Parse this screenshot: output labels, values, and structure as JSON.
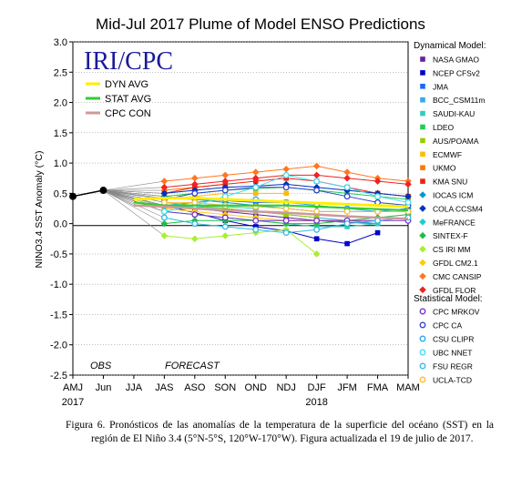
{
  "chart_data": {
    "type": "line",
    "title": "Mid-Jul 2017 Plume of Model ENSO Predictions",
    "ylabel": "NINO3.4 SST Anomaly (°C)",
    "ylim": [
      -2.5,
      3.0
    ],
    "yticks": [
      "3.0",
      "2.5",
      "2.0",
      "1.5",
      "1.0",
      "0.5",
      "0.0",
      "-0.5",
      "-1.0",
      "-1.5",
      "-2.0",
      "-2.5"
    ],
    "x": [
      "AMJ",
      "Jun",
      "JJA",
      "JAS",
      "ASO",
      "SON",
      "OND",
      "NDJ",
      "DJF",
      "JFM",
      "FMA",
      "MAM"
    ],
    "year_labels": [
      {
        "x": "AMJ",
        "text": "2017"
      },
      {
        "x": "DJF",
        "text": "2018"
      }
    ],
    "zero_line": 0,
    "annotations": {
      "obs": "OBS",
      "forecast": "FORECAST"
    },
    "logo": "IRI/CPC",
    "inset_legend": [
      {
        "name": "DYN AVG",
        "color": "#ffee00"
      },
      {
        "name": "STAT AVG",
        "color": "#33cc33"
      },
      {
        "name": "CPC CON",
        "color": "#cc9999"
      }
    ],
    "dynamical_header": "Dynamical Model:",
    "statistical_header": "Statistical Model:",
    "observed": {
      "name": "OBS",
      "values": [
        0.45,
        0.55
      ]
    },
    "series": [
      {
        "name": "NASA GMAO",
        "group": "dyn",
        "color": "#6a1fa0",
        "marker": "square",
        "values": [
          null,
          null,
          null,
          0.28,
          0.25,
          0.2,
          0.15,
          0.1,
          0.05,
          0.02,
          0.0,
          null
        ]
      },
      {
        "name": "NCEP CFSv2",
        "group": "dyn",
        "color": "#0000cc",
        "marker": "square",
        "values": [
          null,
          null,
          null,
          0.3,
          0.18,
          0.05,
          -0.05,
          -0.12,
          -0.25,
          -0.33,
          -0.15,
          null
        ]
      },
      {
        "name": "JMA",
        "group": "dyn",
        "color": "#1a66ff",
        "marker": "square",
        "values": [
          null,
          null,
          null,
          0.42,
          0.4,
          0.38,
          0.35,
          0.35,
          null,
          null,
          null,
          null
        ]
      },
      {
        "name": "BCC_CSM11m",
        "group": "dyn",
        "color": "#33aaee",
        "marker": "square",
        "values": [
          null,
          null,
          null,
          0.3,
          0.28,
          0.25,
          0.2,
          0.15,
          0.1,
          0.05,
          0.0,
          null
        ]
      },
      {
        "name": "SAUDI-KAU",
        "group": "dyn",
        "color": "#33ccbb",
        "marker": "square",
        "values": [
          null,
          null,
          null,
          0.2,
          0.15,
          0.1,
          0.05,
          0.0,
          -0.05,
          -0.05,
          0.0,
          null
        ]
      },
      {
        "name": "LDEO",
        "group": "dyn",
        "color": "#22cc55",
        "marker": "square",
        "values": [
          null,
          null,
          null,
          0.45,
          0.5,
          0.55,
          0.58,
          0.6,
          0.55,
          0.5,
          0.45,
          0.4
        ]
      },
      {
        "name": "AUS/POAMA",
        "group": "dyn",
        "color": "#99cc00",
        "marker": "square",
        "values": [
          null,
          null,
          null,
          0.35,
          0.3,
          0.25,
          0.2,
          0.15,
          0.1,
          null,
          null,
          null
        ]
      },
      {
        "name": "ECMWF",
        "group": "dyn",
        "color": "#ffbb00",
        "marker": "square",
        "values": [
          null,
          null,
          null,
          0.4,
          0.45,
          0.5,
          0.5,
          0.5,
          null,
          null,
          null,
          null
        ]
      },
      {
        "name": "UKMO",
        "group": "dyn",
        "color": "#ff7700",
        "marker": "square",
        "values": [
          null,
          null,
          null,
          0.55,
          0.6,
          0.65,
          null,
          null,
          null,
          null,
          null,
          null
        ]
      },
      {
        "name": "KMA SNU",
        "group": "dyn",
        "color": "#ee2211",
        "marker": "square",
        "values": [
          null,
          null,
          null,
          0.5,
          0.6,
          0.65,
          0.7,
          0.75,
          0.7,
          0.6,
          0.5,
          0.45
        ]
      },
      {
        "name": "IOCAS ICM",
        "group": "dyn",
        "color": "#0099cc",
        "marker": "diamond",
        "values": [
          null,
          null,
          null,
          0.45,
          0.4,
          0.35,
          0.3,
          0.25,
          0.2,
          0.2,
          0.2,
          0.25
        ]
      },
      {
        "name": "COLA CCSM4",
        "group": "dyn",
        "color": "#0033bb",
        "marker": "diamond",
        "values": [
          null,
          null,
          null,
          0.5,
          0.55,
          0.6,
          0.62,
          0.65,
          0.6,
          0.55,
          0.5,
          0.45
        ]
      },
      {
        "name": "MeFRANCE",
        "group": "dyn",
        "color": "#22cccc",
        "marker": "diamond",
        "values": [
          null,
          null,
          null,
          0.3,
          0.3,
          0.28,
          0.25,
          null,
          null,
          null,
          null,
          null
        ]
      },
      {
        "name": "SINTEX-F",
        "group": "dyn",
        "color": "#22bb44",
        "marker": "diamond",
        "values": [
          null,
          null,
          null,
          0.0,
          0.05,
          0.05,
          0.05,
          0.0,
          0.0,
          0.05,
          0.1,
          0.15
        ]
      },
      {
        "name": "CS IRI MM",
        "group": "dyn",
        "color": "#aaee33",
        "marker": "diamond",
        "values": [
          null,
          null,
          null,
          -0.2,
          -0.25,
          -0.2,
          -0.15,
          -0.1,
          -0.5,
          null,
          null,
          null
        ]
      },
      {
        "name": "GFDL CM2.1",
        "group": "dyn",
        "color": "#ffcc00",
        "marker": "diamond",
        "values": [
          null,
          null,
          null,
          0.25,
          0.2,
          0.15,
          0.1,
          0.05,
          0.05,
          0.05,
          0.05,
          null
        ]
      },
      {
        "name": "CMC CANSIP",
        "group": "dyn",
        "color": "#ff7722",
        "marker": "diamond",
        "values": [
          null,
          null,
          null,
          0.7,
          0.75,
          0.8,
          0.85,
          0.9,
          0.95,
          0.85,
          0.75,
          0.7
        ]
      },
      {
        "name": "GFDL FLOR",
        "group": "dyn",
        "color": "#ee2222",
        "marker": "diamond",
        "values": [
          null,
          null,
          null,
          0.6,
          0.65,
          0.7,
          0.75,
          0.8,
          0.8,
          0.75,
          0.7,
          0.65
        ]
      },
      {
        "name": "CPC MRKOV",
        "group": "stat",
        "color": "#7733cc",
        "marker": "circle",
        "values": [
          null,
          null,
          null,
          0.2,
          0.15,
          0.1,
          0.05,
          0.05,
          0.05,
          0.05,
          0.05,
          0.05
        ]
      },
      {
        "name": "CPC CA",
        "group": "stat",
        "color": "#3344cc",
        "marker": "circle",
        "values": [
          null,
          null,
          null,
          0.4,
          0.5,
          0.55,
          0.6,
          0.6,
          0.55,
          0.45,
          0.35,
          0.3
        ]
      },
      {
        "name": "CSU CLIPR",
        "group": "stat",
        "color": "#22aaee",
        "marker": "circle",
        "values": [
          null,
          null,
          null,
          0.3,
          0.35,
          0.4,
          0.4,
          0.35,
          0.3,
          0.25,
          0.2,
          0.2
        ]
      },
      {
        "name": "UBC NNET",
        "group": "stat",
        "color": "#44ddee",
        "marker": "circle",
        "values": [
          null,
          null,
          null,
          0.2,
          0.3,
          0.45,
          0.6,
          0.8,
          0.7,
          0.6,
          0.45,
          0.35
        ]
      },
      {
        "name": "FSU REGR",
        "group": "stat",
        "color": "#33bbdd",
        "marker": "circle",
        "values": [
          null,
          null,
          null,
          0.1,
          0.0,
          -0.05,
          -0.1,
          -0.15,
          -0.1,
          0.0,
          0.05,
          0.1
        ]
      },
      {
        "name": "UCLA-TCD",
        "group": "stat",
        "color": "#ffbb33",
        "marker": "circle",
        "values": [
          null,
          null,
          null,
          0.35,
          0.35,
          0.3,
          0.28,
          0.25,
          0.2,
          0.2,
          0.2,
          0.2
        ]
      },
      {
        "name": "DYN AVG",
        "group": "avg",
        "color": "#ffee00",
        "marker": "none",
        "width": 3,
        "values": [
          null,
          null,
          0.4,
          0.42,
          0.42,
          0.4,
          0.38,
          0.36,
          0.34,
          0.32,
          0.3,
          0.28
        ]
      },
      {
        "name": "STAT AVG",
        "group": "avg",
        "color": "#33cc33",
        "marker": "none",
        "width": 2.2,
        "values": [
          null,
          null,
          0.35,
          0.3,
          0.3,
          0.3,
          0.3,
          0.3,
          0.28,
          0.26,
          0.24,
          0.22
        ]
      },
      {
        "name": "CPC CON",
        "group": "avg",
        "color": "#cc9999",
        "marker": "none",
        "width": 2.5,
        "values": [
          null,
          null,
          0.3,
          0.28,
          0.25,
          0.22,
          0.2,
          0.18,
          0.15,
          0.12,
          0.1,
          0.08
        ]
      }
    ]
  },
  "caption": "Figura 6. Pronósticos de las anomalías de la temperatura de la superficie del océano (SST) en la región de El Niño 3.4 (5°N-5°S, 120°W-170°W). Figura actualizada el 19 de julio de 2017."
}
